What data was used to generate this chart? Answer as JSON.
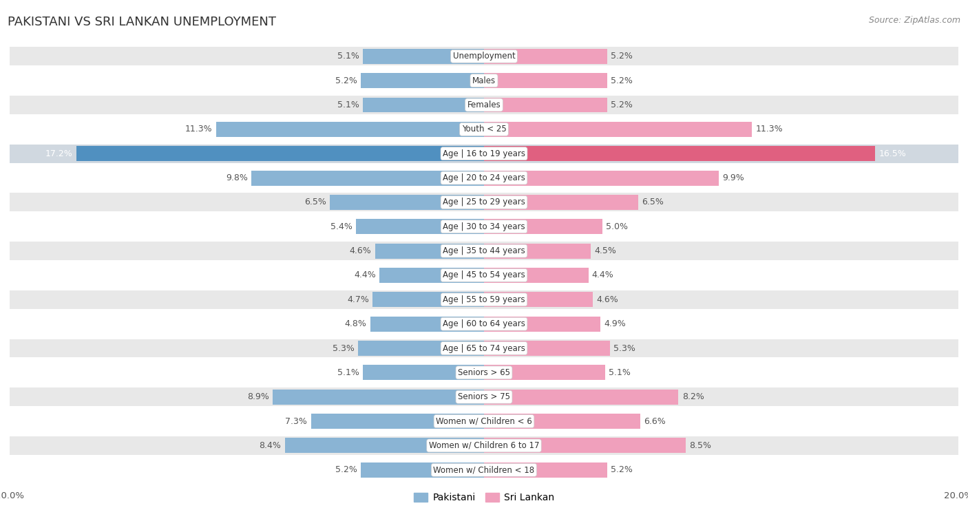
{
  "title": "PAKISTANI VS SRI LANKAN UNEMPLOYMENT",
  "source": "Source: ZipAtlas.com",
  "categories": [
    "Unemployment",
    "Males",
    "Females",
    "Youth < 25",
    "Age | 16 to 19 years",
    "Age | 20 to 24 years",
    "Age | 25 to 29 years",
    "Age | 30 to 34 years",
    "Age | 35 to 44 years",
    "Age | 45 to 54 years",
    "Age | 55 to 59 years",
    "Age | 60 to 64 years",
    "Age | 65 to 74 years",
    "Seniors > 65",
    "Seniors > 75",
    "Women w/ Children < 6",
    "Women w/ Children 6 to 17",
    "Women w/ Children < 18"
  ],
  "pakistani": [
    5.1,
    5.2,
    5.1,
    11.3,
    17.2,
    9.8,
    6.5,
    5.4,
    4.6,
    4.4,
    4.7,
    4.8,
    5.3,
    5.1,
    8.9,
    7.3,
    8.4,
    5.2
  ],
  "srilankan": [
    5.2,
    5.2,
    5.2,
    11.3,
    16.5,
    9.9,
    6.5,
    5.0,
    4.5,
    4.4,
    4.6,
    4.9,
    5.3,
    5.1,
    8.2,
    6.6,
    8.5,
    5.2
  ],
  "pakistani_color": "#8ab4d4",
  "srilankan_color": "#f0a0bc",
  "pakistani_highlight_color": "#5090c0",
  "srilankan_highlight_color": "#e06080",
  "row_bg_color": "#e8e8e8",
  "row_white_color": "#ffffff",
  "highlight_row_bg": "#d0d8e0",
  "bar_height": 0.62,
  "xlim": 20.0,
  "legend_labels": [
    "Pakistani",
    "Sri Lankan"
  ],
  "background_color": "#ffffff",
  "label_fontsize": 9.0,
  "category_fontsize": 8.5,
  "title_fontsize": 13,
  "source_fontsize": 9
}
